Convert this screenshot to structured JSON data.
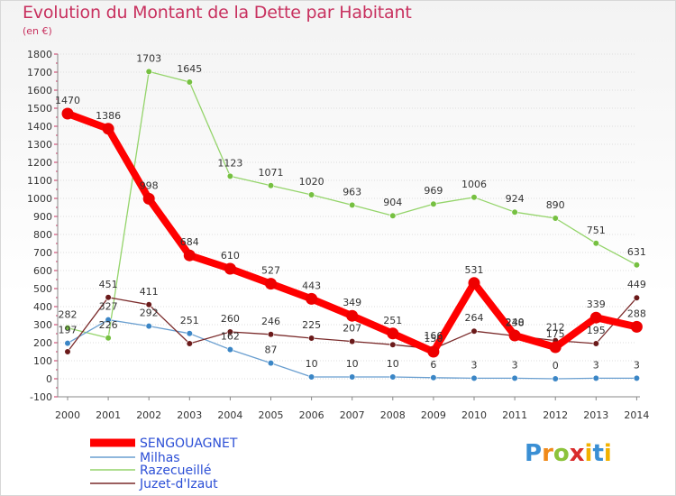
{
  "title": "Evolution du Montant de la Dette par Habitant",
  "subtitle": "(en €)",
  "logo": {
    "text": "Proxiti"
  },
  "colors": {
    "title": "#c8315f",
    "axis": "#333333",
    "grid": "#dddddd"
  },
  "chart_data": {
    "type": "line",
    "title": "Evolution du Montant de la Dette par Habitant",
    "subtitle": "(en €)",
    "xlabel": "",
    "ylabel": "",
    "x": [
      "2000",
      "2001",
      "2002",
      "2003",
      "2004",
      "2005",
      "2006",
      "2007",
      "2008",
      "2009",
      "2010",
      "2011",
      "2012",
      "2013",
      "2014"
    ],
    "ylim": [
      -100,
      1800
    ],
    "yticks": [
      -100,
      0,
      100,
      200,
      300,
      400,
      500,
      600,
      700,
      800,
      900,
      1000,
      1100,
      1200,
      1300,
      1400,
      1500,
      1600,
      1700,
      1800
    ],
    "grid": true,
    "legend_position": "bottom-left",
    "series": [
      {
        "name": "SENGOUAGNET",
        "color": "#ff0000",
        "point_color": "#ee0000",
        "width": 8,
        "values": [
          1470,
          1386,
          998,
          684,
          610,
          527,
          443,
          349,
          251,
          150,
          531,
          240,
          175,
          339,
          288
        ]
      },
      {
        "name": "Milhas",
        "color": "#6a9fd0",
        "point_color": "#3b86c6",
        "width": 1.3,
        "values": [
          197,
          327,
          292,
          251,
          162,
          87,
          10,
          10,
          10,
          6,
          3,
          3,
          0,
          3,
          3
        ]
      },
      {
        "name": "Razecueillé",
        "color": "#94d46a",
        "point_color": "#76c041",
        "width": 1.3,
        "values": [
          282,
          226,
          1703,
          1645,
          1123,
          1071,
          1020,
          963,
          904,
          969,
          1006,
          924,
          890,
          751,
          631
        ]
      },
      {
        "name": "Juzet-d'Izaut",
        "color": "#7a2a2a",
        "point_color": "#6b1a1a",
        "width": 1.3,
        "values": [
          150,
          451,
          411,
          195,
          260,
          246,
          225,
          207,
          189,
          166,
          264,
          238,
          212,
          195,
          449
        ]
      }
    ],
    "data_labels": [
      [
        "1470",
        "1386",
        "998",
        "684",
        "610",
        "527",
        "443",
        "349",
        "251",
        "150",
        "531",
        "240",
        "175",
        "339",
        "288"
      ],
      [
        "197",
        "327",
        "292",
        "251",
        "162",
        "87",
        "10",
        "10",
        "10",
        "6",
        "3",
        "3",
        "0",
        "3",
        "3"
      ],
      [
        "282",
        "226",
        "1703",
        "1645",
        "1123",
        "1071",
        "1020",
        "963",
        "904",
        "969",
        "1006",
        "924",
        "890",
        "751",
        "631"
      ],
      [
        "",
        "451",
        "411",
        "",
        "260",
        "246",
        "225",
        "207",
        "",
        "166",
        "264",
        "238",
        "212",
        "195",
        "449"
      ]
    ]
  }
}
